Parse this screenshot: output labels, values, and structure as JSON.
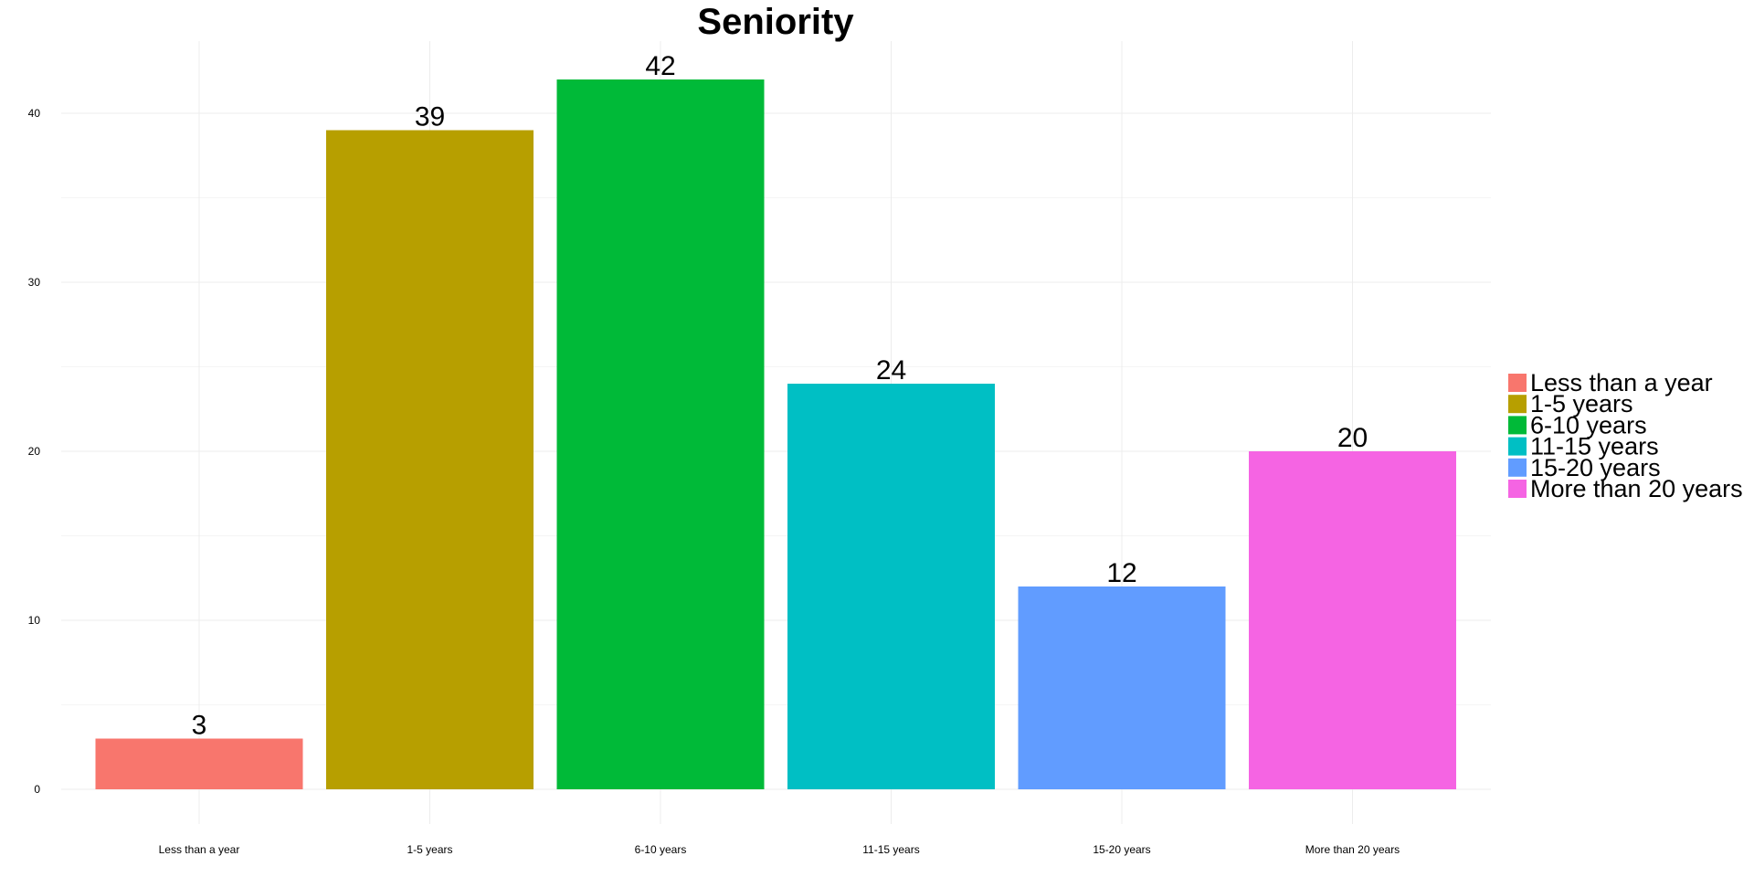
{
  "chart_data": {
    "type": "bar",
    "title": "Seniority",
    "xlabel": "",
    "ylabel": "",
    "categories": [
      "Less than a year",
      "1-5 years",
      "6-10 years",
      "11-15 years",
      "15-20 years",
      "More than 20 years"
    ],
    "values": [
      3,
      39,
      42,
      24,
      12,
      20
    ],
    "data_labels": [
      "3",
      "39",
      "42",
      "24",
      "12",
      "20"
    ],
    "colors": [
      "#F8766D",
      "#B79F00",
      "#00BA38",
      "#00BFC4",
      "#619CFF",
      "#F564E3"
    ],
    "ylim": [
      0,
      44
    ],
    "yticks": [
      0,
      10,
      20,
      30,
      40
    ],
    "ytick_labels": [
      "0",
      "10",
      "20",
      "30",
      "40"
    ],
    "grid": true,
    "legend": {
      "position": "right",
      "entries": [
        "Less than a year",
        "1-5 years",
        "6-10 years",
        "11-15 years",
        "15-20 years",
        "More than 20 years"
      ]
    }
  }
}
